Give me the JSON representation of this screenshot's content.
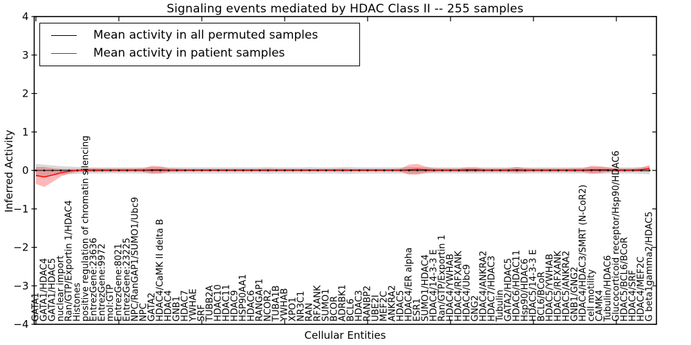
{
  "chart_data": {
    "type": "line",
    "title": "Signaling events mediated by HDAC Class II -- 255 samples",
    "xlabel": "Cellular Entities",
    "ylabel": "Inferred Activity",
    "ylim": [
      -4,
      4
    ],
    "yticks": [
      -4,
      -3,
      -2,
      -1,
      0,
      1,
      2,
      3,
      4
    ],
    "x_major_tick_every": 10,
    "grid": false,
    "legend_position": "upper left",
    "categories": [
      "GATA1",
      "GATA1/HDAC4",
      "GATA1/HDAC5",
      "nuclear import",
      "Ran/GTP/Exportin 1/HDAC4",
      "Histones",
      "positive regulation of chromatin silencing",
      "EntrezGene:23636",
      "EntrezGene:9972",
      "mol:GTP",
      "EntrezGene:8021",
      "EntrezGene:23225",
      "NPC/RanGAP1/SUMO1/Ubc9",
      "NPC",
      "GATA2",
      "HDAC4/CaMK II delta B",
      "HDAC4",
      "GNB1",
      "HDAC7",
      "YWHAE",
      "SRF",
      "TUBB2A",
      "HDAC10",
      "HDAC11",
      "HDAC9",
      "HSP90AA1",
      "HDAC6",
      "RANGAP1",
      "NCOR2",
      "TUBA1B",
      "YWHAB",
      "XPO1",
      "NR3C1",
      "RAN",
      "RFXANK",
      "SUMO1",
      "BCOR",
      "ADRBK1",
      "BCL6",
      "HDAC3",
      "RANBP2",
      "UBE2I",
      "MEF2C",
      "ANKRA2",
      "HDAC5",
      "HDAC4/ER alpha",
      "ESR1",
      "SUMO1/HDAC4",
      "HDAC4/14-3-3 E",
      "Ran/GTP/Exportin 1",
      "HDAC4/YWHAB",
      "HDAC4/RFXANK",
      "HDAC4/Ubc9",
      "GNG2",
      "HDAC4/ANKRA2",
      "HDAC7/HDAC3",
      "Tubulin",
      "GATA2/HDAC5",
      "HDAC6/HDAC11",
      "Hsp90/HDAC6",
      "HDAC5/14-3-3 E",
      "BCL6/BCoR",
      "HDAC5/YWHAB",
      "HDAC5/RFXANK",
      "HDAC5/ANKRA2",
      "GNB1/GNG2",
      "HDAC4/HDAC3/SMRT (N-CoR2)",
      "cell motility",
      "CAMK4",
      "Tubulin/HDAC6",
      "Glucocorticoid receptor/Hsp90/HDAC6",
      "HDAC5/BCL6/BCoR",
      "HDAC4/SRF",
      "HDAC4/MEF2C",
      "G beta1gamma2/HDAC5"
    ],
    "series": [
      {
        "name": "Mean activity in all permuted samples",
        "color": "#000000",
        "band_color": "rgba(130,130,130,0.30)",
        "marker": "dot",
        "values": [
          0,
          0,
          0,
          0,
          0,
          0,
          0,
          0,
          0,
          0,
          0,
          0,
          0,
          0,
          0,
          0,
          0,
          0,
          0,
          0,
          0,
          0,
          0,
          0,
          0,
          0,
          0,
          0,
          0,
          0,
          0,
          0,
          0,
          0,
          0,
          0,
          0,
          0,
          0,
          0,
          0,
          0,
          0,
          0,
          0,
          0,
          0,
          0,
          0,
          0,
          0,
          0,
          0,
          0,
          0,
          0,
          0,
          0,
          0,
          0,
          0,
          0,
          0,
          0,
          0,
          0,
          0,
          0,
          0,
          0,
          0,
          0,
          0,
          0,
          0
        ],
        "std": [
          0.17,
          0.15,
          0.13,
          0.11,
          0.1,
          0.09,
          0.08,
          0.08,
          0.08,
          0.08,
          0.08,
          0.08,
          0.08,
          0.08,
          0.09,
          0.09,
          0.08,
          0.08,
          0.08,
          0.08,
          0.08,
          0.08,
          0.08,
          0.08,
          0.08,
          0.08,
          0.08,
          0.08,
          0.09,
          0.08,
          0.08,
          0.08,
          0.08,
          0.09,
          0.08,
          0.08,
          0.08,
          0.09,
          0.09,
          0.08,
          0.08,
          0.08,
          0.08,
          0.08,
          0.08,
          0.09,
          0.09,
          0.08,
          0.08,
          0.08,
          0.08,
          0.08,
          0.08,
          0.08,
          0.08,
          0.08,
          0.08,
          0.08,
          0.09,
          0.08,
          0.08,
          0.08,
          0.08,
          0.08,
          0.08,
          0.08,
          0.08,
          0.09,
          0.09,
          0.08,
          0.08,
          0.08,
          0.08,
          0.09,
          0.1
        ]
      },
      {
        "name": "Mean activity in patient samples",
        "color": "#ff0000",
        "band_color": "rgba(255,0,0,0.28)",
        "marker": "none",
        "values": [
          -0.13,
          -0.17,
          -0.12,
          -0.06,
          -0.02,
          0,
          0.01,
          0.01,
          0.01,
          0.01,
          0.01,
          0.01,
          0.01,
          0.01,
          0.02,
          0.02,
          0.01,
          0.01,
          0.01,
          0.01,
          0.01,
          0.01,
          0.01,
          0.01,
          0.01,
          0.01,
          0.01,
          0.01,
          0.01,
          0.01,
          0.01,
          0.01,
          0.01,
          0.01,
          0.01,
          0.01,
          0.01,
          0.01,
          0.01,
          0.01,
          0.01,
          0.01,
          0.01,
          0.01,
          0.01,
          0.02,
          0.03,
          0.02,
          0.01,
          0.01,
          0.01,
          0.01,
          0.02,
          0.02,
          0.01,
          0.01,
          0.01,
          0.01,
          0.02,
          0.01,
          0.01,
          0.01,
          0.01,
          0.01,
          0.01,
          0.01,
          0.01,
          0.02,
          0.02,
          0.02,
          0.01,
          0.01,
          0.01,
          0.02,
          0.05
        ],
        "std": [
          0.22,
          0.26,
          0.18,
          0.1,
          0.06,
          0.04,
          0.04,
          0.05,
          0.04,
          0.04,
          0.04,
          0.04,
          0.04,
          0.05,
          0.1,
          0.09,
          0.05,
          0.04,
          0.03,
          0.03,
          0.03,
          0.03,
          0.03,
          0.03,
          0.03,
          0.03,
          0.03,
          0.03,
          0.04,
          0.03,
          0.03,
          0.03,
          0.03,
          0.03,
          0.03,
          0.03,
          0.03,
          0.04,
          0.03,
          0.03,
          0.03,
          0.03,
          0.03,
          0.03,
          0.04,
          0.13,
          0.14,
          0.08,
          0.05,
          0.04,
          0.04,
          0.04,
          0.06,
          0.06,
          0.04,
          0.04,
          0.04,
          0.05,
          0.07,
          0.05,
          0.04,
          0.04,
          0.04,
          0.04,
          0.04,
          0.05,
          0.05,
          0.1,
          0.09,
          0.06,
          0.04,
          0.04,
          0.04,
          0.05,
          0.09
        ]
      }
    ],
    "colors": {
      "axes": "#000000",
      "background": "#ffffff"
    }
  }
}
